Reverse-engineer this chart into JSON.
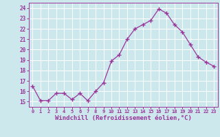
{
  "x": [
    0,
    1,
    2,
    3,
    4,
    5,
    6,
    7,
    8,
    9,
    10,
    11,
    12,
    13,
    14,
    15,
    16,
    17,
    18,
    19,
    20,
    21,
    22,
    23
  ],
  "y": [
    16.5,
    15.1,
    15.1,
    15.8,
    15.8,
    15.2,
    15.8,
    15.1,
    16.0,
    16.8,
    18.9,
    19.5,
    21.0,
    22.0,
    22.4,
    22.8,
    23.9,
    23.5,
    22.4,
    21.7,
    20.5,
    19.3,
    18.8,
    18.4
  ],
  "line_color": "#993399",
  "marker": "+",
  "marker_size": 4,
  "marker_color": "#993399",
  "bg_color": "#cce8ec",
  "grid_color": "#ffffff",
  "xlabel": "Windchill (Refroidissement éolien,°C)",
  "xlabel_color": "#993399",
  "tick_color": "#993399",
  "ylim": [
    14.5,
    24.5
  ],
  "xlim": [
    -0.5,
    23.5
  ],
  "yticks": [
    15,
    16,
    17,
    18,
    19,
    20,
    21,
    22,
    23,
    24
  ],
  "xticks": [
    0,
    1,
    2,
    3,
    4,
    5,
    6,
    7,
    8,
    9,
    10,
    11,
    12,
    13,
    14,
    15,
    16,
    17,
    18,
    19,
    20,
    21,
    22,
    23
  ]
}
